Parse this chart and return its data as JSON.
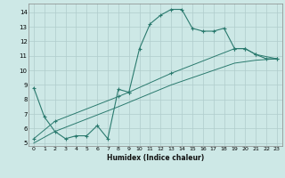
{
  "bg_color": "#cde8e6",
  "grid_color": "#b0cccc",
  "line_color": "#2a7a6e",
  "xlim": [
    -0.5,
    23.5
  ],
  "ylim": [
    4.8,
    14.6
  ],
  "xtick_vals": [
    0,
    1,
    2,
    3,
    4,
    5,
    6,
    7,
    8,
    9,
    10,
    11,
    12,
    13,
    14,
    15,
    16,
    17,
    18,
    19,
    20,
    21,
    22,
    23
  ],
  "ytick_vals": [
    5,
    6,
    7,
    8,
    9,
    10,
    11,
    12,
    13,
    14
  ],
  "xlabel": "Humidex (Indice chaleur)",
  "curve1_x": [
    0,
    1,
    2,
    3,
    4,
    5,
    6,
    7,
    8,
    9,
    10,
    11,
    12,
    13,
    14,
    15,
    16,
    17,
    18,
    19,
    20,
    21,
    22,
    23
  ],
  "curve1_y": [
    8.8,
    6.8,
    5.8,
    5.3,
    5.5,
    5.5,
    6.2,
    5.3,
    8.7,
    8.5,
    11.5,
    13.2,
    13.8,
    14.2,
    14.2,
    12.9,
    12.7,
    12.7,
    12.9,
    11.5,
    11.5,
    11.1,
    10.8,
    10.8
  ],
  "curve2_x": [
    0,
    2,
    8,
    9,
    13,
    19,
    20,
    21,
    23
  ],
  "curve2_y": [
    5.3,
    6.5,
    8.2,
    8.5,
    9.8,
    11.5,
    11.5,
    11.1,
    10.8
  ],
  "curve3_x": [
    0,
    2,
    8,
    9,
    13,
    19,
    21,
    23
  ],
  "curve3_y": [
    5.0,
    5.8,
    7.5,
    7.8,
    9.0,
    10.5,
    10.7,
    10.8
  ]
}
